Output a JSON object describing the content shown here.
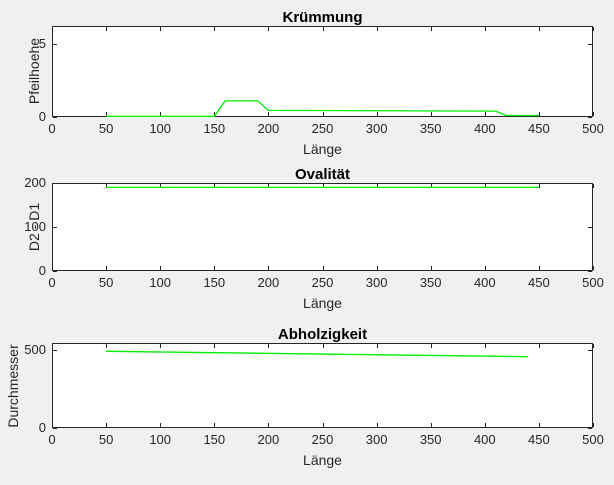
{
  "figure": {
    "background_color": "#f0f0f0",
    "axes_background_color": "#ffffff",
    "axis_color": "#262626",
    "title_color": "#000000",
    "line_color": "#00ee00"
  },
  "chart_data": [
    {
      "type": "line",
      "title": "Krümmung",
      "xlabel": "Länge",
      "ylabel": "Pfeilhoehe",
      "xlim": [
        0,
        500
      ],
      "ylim": [
        0,
        6.2
      ],
      "xticks": [
        0,
        50,
        100,
        150,
        200,
        250,
        300,
        350,
        400,
        450,
        500
      ],
      "yticks": [
        0,
        5
      ],
      "grid": false,
      "legend": null,
      "series": [
        {
          "name": "Pfeilhoehe",
          "color": "#00ee00",
          "x": [
            50,
            150,
            160,
            190,
            200,
            410,
            420,
            450
          ],
          "y": [
            0.05,
            0.05,
            1.1,
            1.1,
            0.45,
            0.4,
            0.1,
            0.1
          ]
        }
      ]
    },
    {
      "type": "line",
      "title": "Ovalität",
      "xlabel": "Länge",
      "ylabel": "D2 - D1",
      "xlim": [
        0,
        500
      ],
      "ylim": [
        0,
        200
      ],
      "xticks": [
        0,
        50,
        100,
        150,
        200,
        250,
        300,
        350,
        400,
        450,
        500
      ],
      "yticks": [
        0,
        100,
        200
      ],
      "grid": false,
      "legend": null,
      "series": [
        {
          "name": "D2 - D1",
          "color": "#00ee00",
          "x": [
            50,
            450
          ],
          "y": [
            190,
            190
          ]
        }
      ]
    },
    {
      "type": "line",
      "title": "Abholzigkeit",
      "xlabel": "Länge",
      "ylabel": "Durchmesser",
      "xlim": [
        0,
        500
      ],
      "ylim": [
        0,
        545
      ],
      "xticks": [
        0,
        50,
        100,
        150,
        200,
        250,
        300,
        350,
        400,
        450,
        500
      ],
      "yticks": [
        0,
        500
      ],
      "grid": false,
      "legend": null,
      "series": [
        {
          "name": "Durchmesser",
          "color": "#00ee00",
          "x": [
            50,
            440
          ],
          "y": [
            492,
            457
          ]
        }
      ]
    }
  ]
}
